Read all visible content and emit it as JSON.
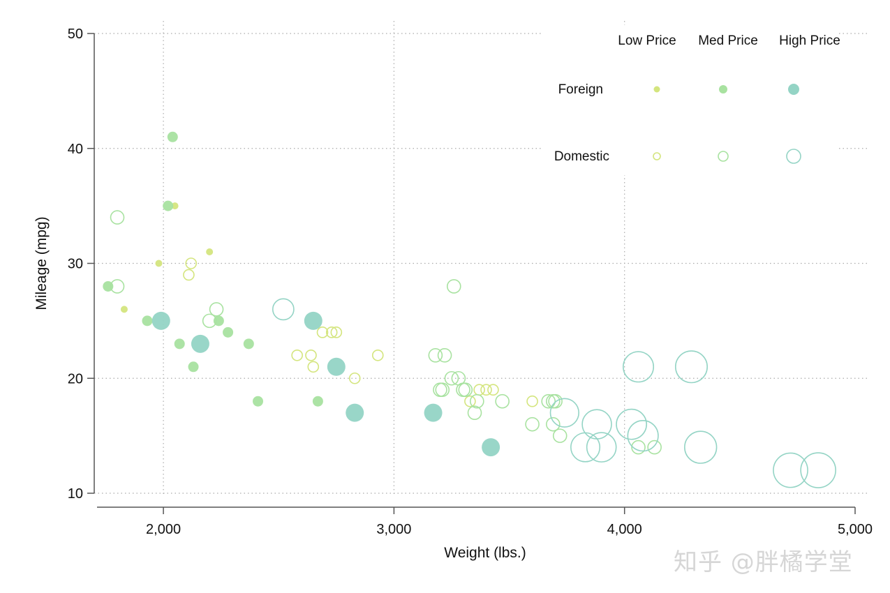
{
  "chart_data": {
    "type": "scatter",
    "xlabel": "Weight (lbs.)",
    "ylabel": "Mileage (mpg)",
    "xlim": [
      1700,
      5000
    ],
    "ylim": [
      10,
      50
    ],
    "xticks": [
      2000,
      3000,
      4000,
      5000
    ],
    "xtick_labels": [
      "2,000",
      "3,000",
      "4,000",
      "5,000"
    ],
    "yticks": [
      10,
      20,
      30,
      40,
      50
    ],
    "ytick_labels": [
      "10",
      "20",
      "30",
      "40",
      "50"
    ],
    "grid": "dotted, both axes",
    "marker_size_meaning": "price tier",
    "legend": {
      "placement": "top-right",
      "columns": [
        "Low Price",
        "Med Price",
        "High Price"
      ],
      "rows": [
        "Foreign",
        "Domestic"
      ]
    },
    "tier_colors": {
      "low": "#d4e57e",
      "med": "#a8e2a0",
      "high": "#94d4c5"
    },
    "series": [
      {
        "name": "Foreign",
        "fill": "solid",
        "points": [
          {
            "x": 2050,
            "y": 35,
            "tier": "low"
          },
          {
            "x": 1980,
            "y": 30,
            "tier": "low"
          },
          {
            "x": 2200,
            "y": 31,
            "tier": "low"
          },
          {
            "x": 1830,
            "y": 26,
            "tier": "low"
          },
          {
            "x": 2040,
            "y": 41,
            "tier": "med"
          },
          {
            "x": 2020,
            "y": 35,
            "tier": "med"
          },
          {
            "x": 1760,
            "y": 28,
            "tier": "med"
          },
          {
            "x": 1930,
            "y": 25,
            "tier": "med"
          },
          {
            "x": 2070,
            "y": 23,
            "tier": "med"
          },
          {
            "x": 2130,
            "y": 21,
            "tier": "med"
          },
          {
            "x": 2240,
            "y": 25,
            "tier": "med"
          },
          {
            "x": 2280,
            "y": 24,
            "tier": "med"
          },
          {
            "x": 2370,
            "y": 23,
            "tier": "med"
          },
          {
            "x": 2410,
            "y": 18,
            "tier": "med"
          },
          {
            "x": 2670,
            "y": 18,
            "tier": "med"
          },
          {
            "x": 1990,
            "y": 25,
            "tier": "high"
          },
          {
            "x": 2160,
            "y": 23,
            "tier": "high"
          },
          {
            "x": 2650,
            "y": 25,
            "tier": "high"
          },
          {
            "x": 2750,
            "y": 21,
            "tier": "high"
          },
          {
            "x": 2830,
            "y": 17,
            "tier": "high"
          },
          {
            "x": 3170,
            "y": 17,
            "tier": "high"
          },
          {
            "x": 3420,
            "y": 14,
            "tier": "high"
          }
        ]
      },
      {
        "name": "Domestic",
        "fill": "hollow",
        "points": [
          {
            "x": 2110,
            "y": 29,
            "tier": "low"
          },
          {
            "x": 2120,
            "y": 30,
            "tier": "low"
          },
          {
            "x": 2580,
            "y": 22,
            "tier": "low"
          },
          {
            "x": 2640,
            "y": 22,
            "tier": "low"
          },
          {
            "x": 2650,
            "y": 21,
            "tier": "low"
          },
          {
            "x": 2690,
            "y": 24,
            "tier": "low"
          },
          {
            "x": 2730,
            "y": 24,
            "tier": "low"
          },
          {
            "x": 2750,
            "y": 24,
            "tier": "low"
          },
          {
            "x": 2830,
            "y": 20,
            "tier": "low"
          },
          {
            "x": 2930,
            "y": 22,
            "tier": "low"
          },
          {
            "x": 3330,
            "y": 18,
            "tier": "low"
          },
          {
            "x": 3370,
            "y": 19,
            "tier": "low"
          },
          {
            "x": 3400,
            "y": 19,
            "tier": "low"
          },
          {
            "x": 3430,
            "y": 19,
            "tier": "low"
          },
          {
            "x": 3600,
            "y": 18,
            "tier": "low"
          },
          {
            "x": 1800,
            "y": 34,
            "tier": "med"
          },
          {
            "x": 1800,
            "y": 28,
            "tier": "med"
          },
          {
            "x": 2200,
            "y": 25,
            "tier": "med"
          },
          {
            "x": 2230,
            "y": 26,
            "tier": "med"
          },
          {
            "x": 3180,
            "y": 22,
            "tier": "med"
          },
          {
            "x": 3220,
            "y": 22,
            "tier": "med"
          },
          {
            "x": 3200,
            "y": 19,
            "tier": "med"
          },
          {
            "x": 3210,
            "y": 19,
            "tier": "med"
          },
          {
            "x": 3250,
            "y": 20,
            "tier": "med"
          },
          {
            "x": 3280,
            "y": 20,
            "tier": "med"
          },
          {
            "x": 3300,
            "y": 19,
            "tier": "med"
          },
          {
            "x": 3310,
            "y": 19,
            "tier": "med"
          },
          {
            "x": 3260,
            "y": 28,
            "tier": "med"
          },
          {
            "x": 3350,
            "y": 17,
            "tier": "med"
          },
          {
            "x": 3360,
            "y": 18,
            "tier": "med"
          },
          {
            "x": 3470,
            "y": 18,
            "tier": "med"
          },
          {
            "x": 3600,
            "y": 16,
            "tier": "med"
          },
          {
            "x": 3670,
            "y": 18,
            "tier": "med"
          },
          {
            "x": 3690,
            "y": 18,
            "tier": "med"
          },
          {
            "x": 3700,
            "y": 18,
            "tier": "med"
          },
          {
            "x": 3690,
            "y": 16,
            "tier": "med"
          },
          {
            "x": 3720,
            "y": 15,
            "tier": "med"
          },
          {
            "x": 4060,
            "y": 14,
            "tier": "med"
          },
          {
            "x": 4130,
            "y": 14,
            "tier": "med"
          },
          {
            "x": 2520,
            "y": 26,
            "tier": "high"
          },
          {
            "x": 3740,
            "y": 17,
            "tier": "high"
          },
          {
            "x": 3830,
            "y": 14,
            "tier": "high"
          },
          {
            "x": 3880,
            "y": 16,
            "tier": "high"
          },
          {
            "x": 3900,
            "y": 14,
            "tier": "high"
          },
          {
            "x": 4030,
            "y": 16,
            "tier": "high"
          },
          {
            "x": 4060,
            "y": 21,
            "tier": "high"
          },
          {
            "x": 4080,
            "y": 15,
            "tier": "high"
          },
          {
            "x": 4290,
            "y": 21,
            "tier": "high"
          },
          {
            "x": 4330,
            "y": 14,
            "tier": "high"
          },
          {
            "x": 4720,
            "y": 12,
            "tier": "high"
          },
          {
            "x": 4840,
            "y": 12,
            "tier": "high"
          }
        ]
      }
    ]
  },
  "watermark": "知乎 @胖橘学堂"
}
